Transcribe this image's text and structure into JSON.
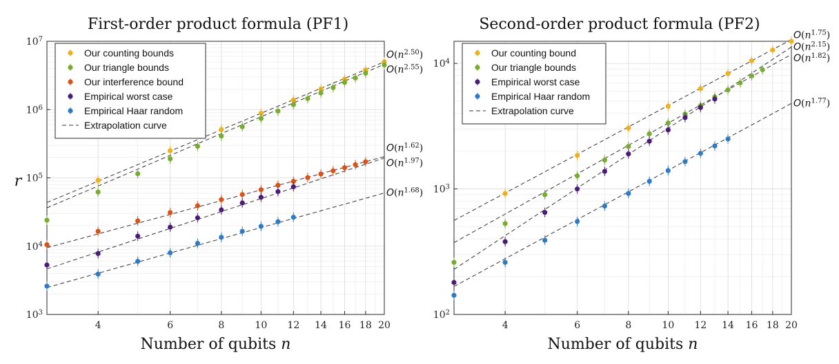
{
  "ylabel": "r",
  "chart_data": [
    {
      "type": "scatter",
      "title": "First-order product formula (PF1)",
      "xlabel": "Number of qubits n",
      "ylabel": "r",
      "xscale": "log",
      "yscale": "log",
      "xlim": [
        3,
        20
      ],
      "ylim": [
        1000,
        10000000
      ],
      "xticks": [
        4,
        6,
        8,
        10,
        12,
        14,
        16,
        18,
        20
      ],
      "yticks": [
        {
          "value": 1000,
          "label": "10^3"
        },
        {
          "value": 10000,
          "label": "10^4"
        },
        {
          "value": 100000,
          "label": "10^5"
        },
        {
          "value": 1000000,
          "label": "10^6"
        },
        {
          "value": 10000000,
          "label": "10^7"
        }
      ],
      "grid": true,
      "legend_position": "top-left",
      "series": [
        {
          "name": "Our counting bounds",
          "color": "#EDB120",
          "x": [
            4,
            6,
            8,
            10,
            12,
            14,
            16,
            18,
            20
          ],
          "y": [
            92000,
            250000,
            510000,
            880000,
            1380000,
            2000000,
            2800000,
            3800000,
            5000000
          ]
        },
        {
          "name": "Our triangle bounds",
          "color": "#77AC30",
          "x": [
            3,
            4,
            5,
            6,
            7,
            8,
            9,
            10,
            11,
            12,
            13,
            14,
            15,
            16,
            17,
            18,
            20
          ],
          "y": [
            24000,
            62000,
            115000,
            190000,
            290000,
            410000,
            560000,
            740000,
            950000,
            1180000,
            1450000,
            1750000,
            2100000,
            2500000,
            2900000,
            3400000,
            4500000
          ]
        },
        {
          "name": "Our interference bound",
          "color": "#D95319",
          "x": [
            3,
            4,
            5,
            6,
            7,
            8,
            9,
            10,
            11,
            12,
            13,
            14,
            15,
            16,
            17,
            18
          ],
          "y": [
            10500,
            16500,
            23500,
            31000,
            39000,
            48000,
            57000,
            67000,
            78000,
            89000,
            101000,
            114000,
            127000,
            141000,
            156000,
            172000
          ]
        },
        {
          "name": "Empirical worst case",
          "color": "#4B1C75",
          "x": [
            3,
            4,
            5,
            6,
            7,
            8,
            9,
            10,
            11,
            12
          ],
          "y": [
            5300,
            7800,
            14000,
            19000,
            26000,
            34000,
            43000,
            52000,
            63000,
            74000
          ]
        },
        {
          "name": "Empirical Haar random",
          "color": "#2E7BC4",
          "x": [
            3,
            4,
            5,
            6,
            7,
            8,
            9,
            10,
            11,
            12
          ],
          "y": [
            2600,
            3900,
            6000,
            8000,
            11000,
            13500,
            16500,
            19500,
            22800,
            26500
          ]
        }
      ],
      "extrapolation": {
        "legend_label": "Extrapolation curve",
        "curves": [
          {
            "label": "O(n^{2.50})",
            "exponent": 2.5,
            "y_at_20": 5000000
          },
          {
            "label": "O(n^{2.55})",
            "exponent": 2.55,
            "y_at_20": 4600000
          },
          {
            "label": "O(n^{1.62})",
            "exponent": 1.62,
            "y_at_20": 205000
          },
          {
            "label": "O(n^{1.97})",
            "exponent": 1.97,
            "y_at_20": 195000
          },
          {
            "label": "O(n^{1.68})",
            "exponent": 1.68,
            "y_at_20": 60000
          }
        ]
      }
    },
    {
      "type": "scatter",
      "title": "Second-order product formula (PF2)",
      "xlabel": "Number of qubits n",
      "ylabel": "",
      "xscale": "log",
      "yscale": "log",
      "xlim": [
        3,
        20
      ],
      "ylim": [
        100,
        15000
      ],
      "xticks": [
        4,
        6,
        8,
        10,
        12,
        14,
        16,
        18,
        20
      ],
      "yticks": [
        {
          "value": 100,
          "label": "10^2"
        },
        {
          "value": 1000,
          "label": "10^3"
        },
        {
          "value": 10000,
          "label": "10^4"
        }
      ],
      "grid": true,
      "legend_position": "top-left",
      "series": [
        {
          "name": "Our counting bound",
          "color": "#EDB120",
          "x": [
            4,
            6,
            8,
            10,
            12,
            14,
            16,
            18,
            20
          ],
          "y": [
            920,
            1850,
            3050,
            4550,
            6300,
            8300,
            10500,
            12800,
            15000
          ]
        },
        {
          "name": "Our triangle bounds",
          "color": "#77AC30",
          "x": [
            3,
            4,
            5,
            6,
            7,
            8,
            9,
            10,
            11,
            12,
            13,
            14,
            15,
            16,
            17
          ],
          "y": [
            260,
            530,
            900,
            1270,
            1700,
            2180,
            2750,
            3350,
            3950,
            4600,
            5400,
            6150,
            7000,
            7950,
            8900
          ]
        },
        {
          "name": "Empirical worst case",
          "color": "#4B1C75",
          "x": [
            3,
            4,
            5,
            6,
            7,
            8,
            9,
            10,
            11,
            12,
            13
          ],
          "y": [
            180,
            380,
            650,
            1000,
            1380,
            1900,
            2400,
            2950,
            3700,
            4450,
            5200
          ]
        },
        {
          "name": "Empirical Haar random",
          "color": "#2E7BC4",
          "x": [
            3,
            4,
            5,
            6,
            7,
            8,
            9,
            10,
            11,
            12,
            13,
            14
          ],
          "y": [
            142,
            260,
            390,
            550,
            730,
            920,
            1150,
            1400,
            1650,
            1920,
            2200,
            2500
          ]
        }
      ],
      "extrapolation": {
        "legend_label": "Extrapolation curve",
        "curves": [
          {
            "label": "O(n^{1.75})",
            "exponent": 1.75,
            "y_at_20": 15500
          },
          {
            "label": "O(n^{2.15})",
            "exponent": 2.15,
            "y_at_20": 13500
          },
          {
            "label": "O(n^{1.82})",
            "exponent": 1.82,
            "y_at_20": 11800
          },
          {
            "label": "O(n^{1.77})",
            "exponent": 1.77,
            "y_at_20": 4800
          }
        ]
      }
    }
  ]
}
